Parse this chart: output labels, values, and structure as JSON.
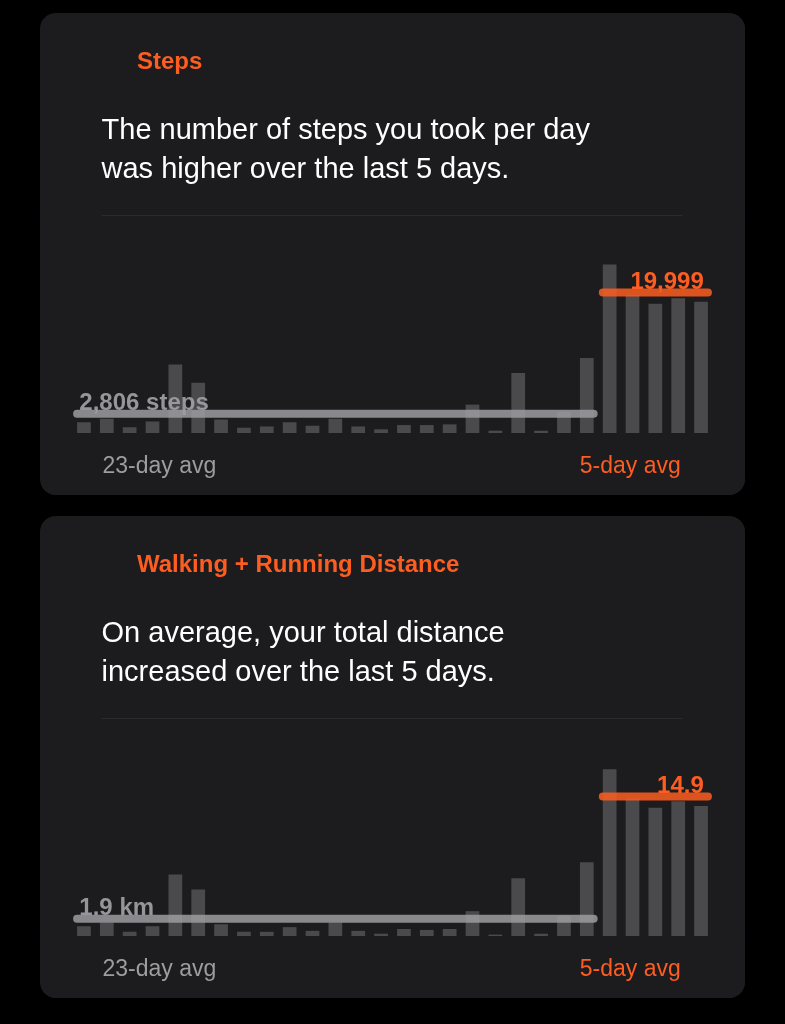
{
  "chart_data": [
    {
      "type": "bar",
      "title": "Steps",
      "subtitle": "The number of steps you took per day was higher over the last 5 days.",
      "categories": [
        null,
        null,
        null,
        null,
        null,
        null,
        null,
        null,
        null,
        null,
        null,
        null,
        null,
        null,
        null,
        null,
        null,
        null,
        null,
        null,
        null,
        null,
        null,
        null,
        null,
        null,
        null,
        null
      ],
      "stacked": true,
      "series": [
        {
          "color": "#4a4a4d",
          "values": [
            1600,
            2100,
            900,
            1700,
            9800,
            7200,
            2000,
            800,
            1000,
            1600,
            1100,
            2100,
            1000,
            600,
            1200,
            1200,
            1300,
            4100,
            400,
            8600,
            400,
            3100,
            10700,
            null,
            null,
            null,
            null,
            null
          ]
        },
        {
          "color": "#4a4a4d",
          "values": [
            null,
            null,
            null,
            null,
            null,
            null,
            null,
            null,
            null,
            null,
            null,
            null,
            null,
            null,
            null,
            null,
            null,
            null,
            null,
            null,
            null,
            null,
            null,
            24000,
            19700,
            18400,
            19200,
            18700
          ]
        }
      ],
      "ylim": [
        0,
        30800
      ],
      "tick_labels": false,
      "ref_lines": [
        {
          "axis": "y",
          "value": 2806,
          "label": "2,806 steps",
          "color": "#9c9ca1"
        },
        {
          "axis": "y",
          "value": 19999,
          "label": "19,999",
          "color": "#fd5d20"
        }
      ],
      "annotations": [
        "23-day avg",
        "5-day avg"
      ]
    },
    {
      "type": "bar",
      "title": "Walking + Running Distance",
      "subtitle": "On average, your total distance increased over the last 5 days.",
      "categories": [
        null,
        null,
        null,
        null,
        null,
        null,
        null,
        null,
        null,
        null,
        null,
        null,
        null,
        null,
        null,
        null,
        null,
        null,
        null,
        null,
        null,
        null,
        null,
        null,
        null,
        null,
        null,
        null
      ],
      "stacked": true,
      "series": [
        {
          "color": "#4a4a4d",
          "values": [
            1.1,
            1.5,
            0.5,
            1.1,
            6.6,
            5.0,
            1.3,
            0.5,
            0.5,
            1.0,
            0.6,
            1.5,
            0.6,
            0.3,
            0.8,
            0.7,
            0.8,
            2.7,
            0.2,
            6.2,
            0.3,
            2.2,
            7.9,
            null,
            null,
            null,
            null,
            null
          ]
        },
        {
          "color": "#4a4a4d",
          "values": [
            null,
            null,
            null,
            null,
            null,
            null,
            null,
            null,
            null,
            null,
            null,
            null,
            null,
            null,
            null,
            null,
            null,
            null,
            null,
            null,
            null,
            null,
            null,
            17.8,
            14.7,
            13.7,
            14.4,
            13.9
          ]
        }
      ],
      "ylim": [
        0,
        23.1
      ],
      "tick_labels": false,
      "ref_lines": [
        {
          "axis": "y",
          "value": 1.9,
          "label": "1.9 km",
          "color": "#9c9ca1"
        },
        {
          "axis": "y",
          "value": 14.9,
          "label": "14.9",
          "color": "#fd5d20"
        }
      ],
      "annotations": [
        "23-day avg",
        "5-day avg"
      ]
    }
  ]
}
